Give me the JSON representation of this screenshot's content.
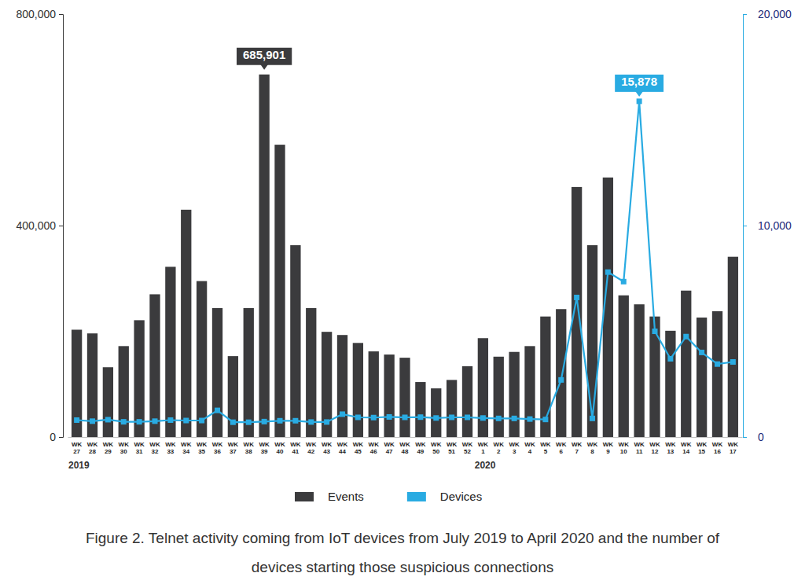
{
  "chart_data": {
    "type": "bar",
    "title": "Figure 2. Telnet activity coming from IoT devices from July 2019 to April 2020 and the number of devices starting those suspicious connections",
    "categories": [
      "WK 27",
      "WK 28",
      "WK 29",
      "WK 30",
      "WK 31",
      "WK 32",
      "WK 33",
      "WK 34",
      "WK 35",
      "WK 36",
      "WK 37",
      "WK 38",
      "WK 39",
      "WK 40",
      "WK 41",
      "WK 42",
      "WK 43",
      "WK 44",
      "WK 45",
      "WK 46",
      "WK 47",
      "WK 48",
      "WK 49",
      "WK 50",
      "WK 51",
      "WK 52",
      "WK 1",
      "WK 2",
      "WK 3",
      "WK 4",
      "WK 5",
      "WK 6",
      "WK 7",
      "WK 8",
      "WK 9",
      "WK 10",
      "WK 11",
      "WK 12",
      "WK 13",
      "WK 14",
      "WK 15",
      "WK 16",
      "WK 17"
    ],
    "x_group_labels": [
      {
        "label": "2019",
        "x": "WK 27"
      },
      {
        "label": "2020",
        "x": "WK 1"
      }
    ],
    "series": [
      {
        "name": "Events",
        "type": "bar",
        "color": "#3b3b3d",
        "values": [
          203000,
          196000,
          132000,
          172000,
          221000,
          270000,
          322000,
          430000,
          295000,
          244000,
          153000,
          244000,
          685901,
          553000,
          363000,
          244000,
          199000,
          193000,
          178000,
          162000,
          156000,
          150000,
          104000,
          92000,
          108000,
          134000,
          187000,
          152000,
          161000,
          172000,
          228000,
          242000,
          473000,
          363000,
          491000,
          268000,
          251000,
          228000,
          201000,
          277000,
          226000,
          238000,
          341000
        ]
      },
      {
        "name": "Devices",
        "type": "line",
        "axis": "y2",
        "color": "#29abe2",
        "marker": "square",
        "values": [
          800,
          750,
          820,
          720,
          720,
          750,
          800,
          780,
          780,
          1260,
          700,
          700,
          730,
          770,
          770,
          710,
          710,
          1080,
          930,
          920,
          950,
          930,
          940,
          900,
          930,
          930,
          900,
          880,
          880,
          850,
          830,
          2700,
          6600,
          880,
          7800,
          7350,
          15878,
          5000,
          3700,
          4750,
          4000,
          3450,
          3550
        ]
      }
    ],
    "ylim": [
      0,
      800000
    ],
    "yticks": [
      0,
      {
        "value": 400000,
        "label": "400,000"
      },
      {
        "value": 800000,
        "label": "800,000"
      }
    ],
    "y2lim": [
      0,
      20000
    ],
    "y2ticks": [
      0,
      {
        "value": 10000,
        "label": "10,000"
      },
      {
        "value": 20000,
        "label": "20,000"
      }
    ],
    "annotations": [
      {
        "text": "685,901",
        "x": "WK 39",
        "y": 685901,
        "axis": "y",
        "color": "#3b3b3d"
      },
      {
        "text": "15,878",
        "x": "WK 11",
        "y": 15878,
        "axis": "y2",
        "color": "#29abe2"
      }
    ],
    "legend": "bottom",
    "grid": false,
    "data_labels": false
  }
}
